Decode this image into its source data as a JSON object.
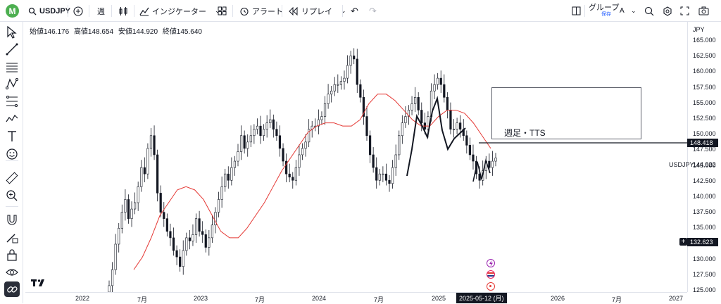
{
  "header": {
    "avatar_letter": "M",
    "symbol": "USDJPY",
    "interval": "週",
    "indicators_label": "インジケーター",
    "alert_label": "アラート",
    "replay_label": "リプレイ",
    "group_label": "グループ",
    "group_sub": "保存",
    "group_letter": "A"
  },
  "legend": {
    "open": "始値146.176",
    "high": "高値148.654",
    "low": "安値144.920",
    "close": "終値145.640"
  },
  "axis": {
    "currency": "JPY",
    "price_ticks": [
      "165.000",
      "162.500",
      "160.000",
      "157.500",
      "155.000",
      "152.500",
      "150.000",
      "147.500",
      "145.000",
      "142.500",
      "140.000",
      "137.500",
      "135.000",
      "132.500",
      "130.000",
      "127.500",
      "125.000"
    ],
    "time_ticks": [
      "2022",
      "7月",
      "2023",
      "7月",
      "2024",
      "7月",
      "2025",
      "2026",
      "7月",
      "2027"
    ]
  },
  "price_tags": {
    "line_price": "148.418",
    "current_price": "144.922",
    "cursor_price": "132.623"
  },
  "symbol_label": "USDJPY",
  "cursor_date": "2025-05-12 (月)",
  "annotation": {
    "text": "週足・TTS"
  },
  "colors": {
    "ma": "#e53935",
    "candle": "#131722",
    "accent": "#2962ff"
  },
  "chart_data": {
    "type": "candlestick",
    "ylim": [
      124.5,
      166.5
    ],
    "series": [
      {
        "name": "USDJPY",
        "weekly_closes": [
          125.5,
          128,
          132,
          134.5,
          137,
          139,
          136,
          137.5,
          138.5,
          141,
          144,
          143,
          147,
          149,
          146,
          140,
          137,
          136,
          134,
          133,
          131,
          130,
          128.5,
          131,
          133,
          132.5,
          133.5,
          136,
          134,
          133.5,
          131.5,
          133,
          135,
          137,
          139,
          141,
          143,
          142,
          144,
          145,
          146.5,
          149,
          147,
          148,
          149,
          150,
          150.5,
          149,
          150,
          151,
          151.5,
          150,
          149,
          147,
          145,
          143,
          142.5,
          142,
          144,
          146,
          147,
          148,
          150,
          150.5,
          150.5,
          151.5,
          152,
          154,
          155.5,
          156,
          157,
          157,
          157.5,
          158,
          160,
          161.5,
          161,
          157,
          155,
          152,
          149,
          146,
          144,
          142,
          143,
          143,
          142,
          141.5,
          144,
          146,
          149,
          151,
          152,
          153,
          154,
          155,
          153,
          151,
          150,
          152,
          156,
          157,
          158,
          157,
          155,
          153,
          150,
          150,
          151,
          150,
          149,
          147.5,
          146,
          145,
          143,
          142,
          143.5,
          145,
          144,
          145,
          145.5
        ]
      },
      {
        "name": "MA",
        "values": [
          128,
          130,
          133,
          136.5,
          138.5,
          140.5,
          141,
          140.5,
          139,
          136.5,
          134,
          133,
          133,
          134.5,
          136.5,
          138.5,
          141,
          143.5,
          145.5,
          147.5,
          149.5,
          150.5,
          151,
          151,
          150.5,
          150.5,
          151.5,
          154,
          155.5,
          155.5,
          154.5,
          153,
          151.5,
          150.5,
          150.5,
          152,
          153,
          153,
          152.5,
          151,
          149,
          147
        ]
      }
    ]
  },
  "tools": [
    "cursor-icon",
    "trend-line-icon",
    "horizontal-lines-icon",
    "pattern-icon",
    "fib-icon",
    "zigzag-icon",
    "text-icon",
    "emoji-icon",
    "ruler-icon",
    "zoom-icon",
    "magnet-icon",
    "pencil-lock-icon",
    "lock-icon",
    "eye-icon",
    "link-icon"
  ]
}
